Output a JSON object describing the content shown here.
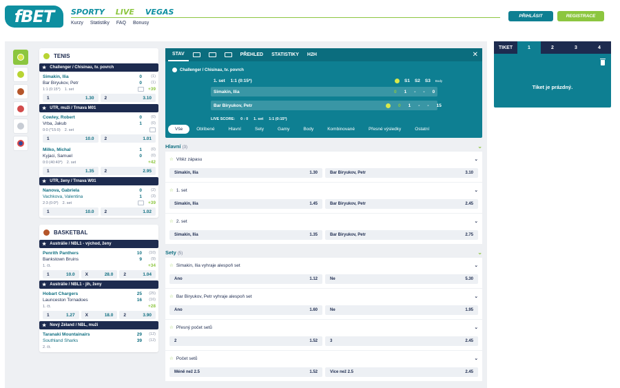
{
  "header": {
    "logo": "fBET",
    "nav": [
      "SPORTY",
      "LIVE",
      "VEGAS"
    ],
    "subnav": [
      "Kurzy",
      "Statistiky",
      "FAQ",
      "Bonusy"
    ],
    "login": "PŘIHLÁSIT",
    "register": "REGISTRACE"
  },
  "colors": {
    "accent": "#0e8fa0",
    "green": "#8cc63f",
    "navy": "#1d2b4f"
  },
  "sport_icons": [
    "tennis-ball-icon",
    "tennis-icon",
    "basketball-icon",
    "hockey-icon",
    "soccer-icon",
    "volleyball-icon"
  ],
  "tennis": {
    "title": "TENIS",
    "leagues": [
      {
        "name": "Challenger / Chisinau, tv. povrch",
        "matches": [
          {
            "t1": "Simakin, Ilia",
            "t2": "Bar Biryukov, Petr",
            "s1": "0",
            "s1b": "(1)",
            "s2": "0",
            "s2b": "(1)",
            "meta": "1:1 (0:15*)",
            "set": "1. set",
            "trend": "+39",
            "o1l": "1",
            "o1": "1.30",
            "o2l": "2",
            "o2": "3.10"
          }
        ]
      },
      {
        "name": "UTR, muži / Trnava M01",
        "matches": [
          {
            "t1": "Cowley, Robert",
            "t2": "Vrba, Jakub",
            "s1": "0",
            "s1b": "(0)",
            "s2": "1",
            "s2b": "(0)",
            "meta": "0:0 (*15:0)",
            "set": "2. set",
            "trend": "",
            "o1l": "1",
            "o1": "10.0",
            "o2l": "2",
            "o2": "1.01"
          },
          {
            "t1": "Milko, Michal",
            "t2": "Kyjaci, Samuel",
            "s1": "1",
            "s1b": "(0)",
            "s2": "0",
            "s2b": "(0)",
            "meta": "0:0 (40:40*)",
            "set": "2. set",
            "trend": "+42",
            "o1l": "1",
            "o1": "1.35",
            "o2l": "2",
            "o2": "2.95"
          }
        ]
      },
      {
        "name": "UTR, ženy / Trnava W01",
        "matches": [
          {
            "t1": "Nanova, Gabriela",
            "t2": "Vachkova, Valentina",
            "s1": "0",
            "s1b": "(2)",
            "s2": "1",
            "s2b": "(3)",
            "meta": "2:3 (0:0*)",
            "set": "2. set",
            "trend": "+39",
            "o1l": "1",
            "o1": "10.0",
            "o2l": "2",
            "o2": "1.02"
          }
        ]
      }
    ]
  },
  "basketball": {
    "title": "BASKETBAL",
    "leagues": [
      {
        "name": "Austrálie / NBL1 - východ, ženy",
        "matches": [
          {
            "t1": "Penrith Panthers",
            "t2": "Bankstown Bruins",
            "s1": "10",
            "s1b": "(10)",
            "s2": "9",
            "s2b": "(9)",
            "meta": "1. čt.",
            "trend": "+34",
            "o1l": "1",
            "o1": "10.0",
            "oxl": "X",
            "ox": "28.0",
            "o2l": "2",
            "o2": "1.04"
          }
        ]
      },
      {
        "name": "Austrálie / NBL1 - jih, ženy",
        "matches": [
          {
            "t1": "Hobart Chargers",
            "t2": "Launceston Tornadoes",
            "s1": "25",
            "s1b": "(25)",
            "s2": "16",
            "s2b": "(16)",
            "meta": "1. čt.",
            "trend": "+28",
            "o1l": "1",
            "o1": "1.27",
            "oxl": "X",
            "ox": "18.0",
            "o2l": "2",
            "o2": "3.90"
          }
        ]
      },
      {
        "name": "Nový Zéland / NBL, muži",
        "matches": [
          {
            "t1": "Taranaki Mountainairs",
            "t2": "Southland Sharks",
            "s1": "29",
            "s1b": "(12)",
            "s2": "39",
            "s2b": "(12)",
            "meta": "2. čt."
          }
        ]
      }
    ]
  },
  "match": {
    "tabs": [
      "STAV",
      "PŘEHLED",
      "STATISTIKY",
      "H2H"
    ],
    "league": "Challenger / Chisinau, tv. povrch",
    "set": "1. set",
    "setscore": "1:1 (0:15*)",
    "cols": [
      "S1",
      "S2",
      "S3"
    ],
    "body_label": "Body",
    "p1": {
      "name": "Simakin, Ilia",
      "g": "0",
      "s1": "1",
      "s2": "-",
      "s3": "-",
      "pts": "0"
    },
    "p2": {
      "name": "Bar Biryukov, Petr",
      "g": "0",
      "s1": "1",
      "s2": "-",
      "s3": "-",
      "pts": "15"
    },
    "livescore_label": "LIVE SCORE:",
    "livescore": "0 : 0",
    "livescore_set": "1. set",
    "livescore_games": "1:1 (0:15*)",
    "filters": [
      "Vše",
      "Oblíbené",
      "Hlavní",
      "Sety",
      "Gamy",
      "Body",
      "Kombinované",
      "Přesné výsledky",
      "Ostatní"
    ]
  },
  "sections": [
    {
      "title": "Hlavní",
      "count": "(3)",
      "markets": [
        {
          "title": "Vítěz zápasu",
          "a": "Simakin, Ilia",
          "av": "1.30",
          "b": "Bar Biryukov, Petr",
          "bv": "3.10"
        },
        {
          "title": "1. set",
          "a": "Simakin, Ilia",
          "av": "1.45",
          "b": "Bar Biryukov, Petr",
          "bv": "2.45"
        },
        {
          "title": "2. set",
          "a": "Simakin, Ilia",
          "av": "1.35",
          "b": "Bar Biryukov, Petr",
          "bv": "2.75"
        }
      ]
    },
    {
      "title": "Sety",
      "count": "(5)",
      "markets": [
        {
          "title": "Simakin, Ilia vyhraje alespoň set",
          "a": "Ano",
          "av": "1.12",
          "b": "Ne",
          "bv": "5.30"
        },
        {
          "title": "Bar Biryukov, Petr vyhraje alespoň set",
          "a": "Ano",
          "av": "1.60",
          "b": "Ne",
          "bv": "1.95"
        },
        {
          "title": "Přesný počet setů",
          "a": "2",
          "av": "1.52",
          "b": "3",
          "bv": "2.45"
        },
        {
          "title": "Počet setů",
          "a": "Méně než 2.5",
          "av": "1.52",
          "b": "Více než 2.5",
          "bv": "2.45"
        }
      ]
    }
  ],
  "tiket": {
    "label": "TIKET",
    "tabs": [
      "1",
      "2",
      "3",
      "4"
    ],
    "empty": "Tiket je prázdný."
  }
}
